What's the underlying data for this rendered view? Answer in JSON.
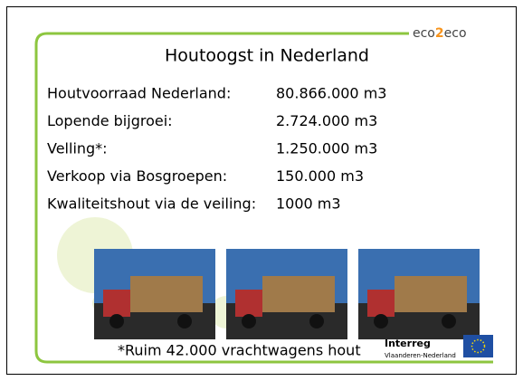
{
  "header": {
    "title": "Houtoogst in Nederland",
    "logo": {
      "left": "eco",
      "middle": "2",
      "right": "eco"
    }
  },
  "facts": [
    {
      "label": "Houtvoorraad Nederland:",
      "value": "80.866.000 m3"
    },
    {
      "label": "Lopende bijgroei:",
      "value": "2.724.000 m3"
    },
    {
      "label": "Velling*:",
      "value": "1.250.000 m3"
    },
    {
      "label": "Verkoop via Bosgroepen:",
      "value": "150.000 m3"
    },
    {
      "label": "Kwaliteitshout via de veiling:",
      "value": "1000 m3"
    }
  ],
  "footnote": "*Ruim 42.000 vrachtwagens hout",
  "sponsor": {
    "name": "Interreg",
    "region": "Vlaanderen-Nederland"
  }
}
